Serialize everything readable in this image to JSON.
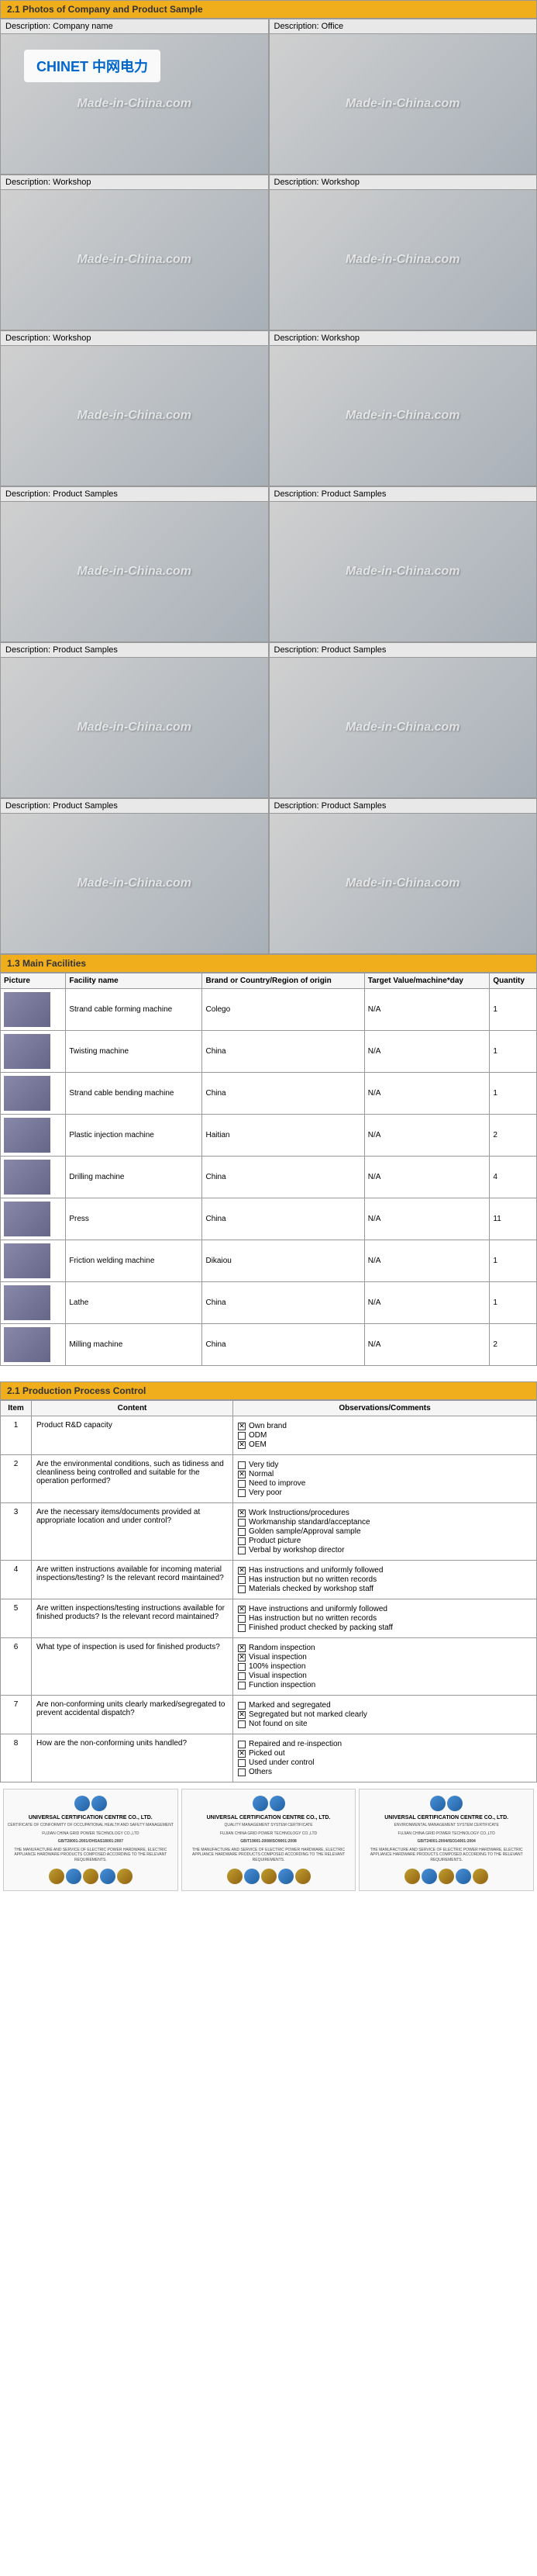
{
  "sections": {
    "photos_title": "2.1 Photos of Company and Product Sample",
    "facilities_title": "1.3 Main Facilities",
    "ppc_title": "2.1 Production Process Control"
  },
  "watermark": "Made-in-China.com",
  "company_logo": "CHINET 中网电力",
  "photo_labels": {
    "company": "Description: Company name",
    "office": "Description: Office",
    "workshop": "Description: Workshop",
    "samples": "Description: Product Samples"
  },
  "facility_headers": {
    "picture": "Picture",
    "name": "Facility name",
    "brand": "Brand or Country/Region of origin",
    "target": "Target Value/machine*day",
    "qty": "Quantity"
  },
  "facilities": [
    {
      "name": "Strand cable forming machine",
      "brand": "Colego",
      "target": "N/A",
      "qty": "1"
    },
    {
      "name": "Twisting machine",
      "brand": "China",
      "target": "N/A",
      "qty": "1"
    },
    {
      "name": "Strand cable bending machine",
      "brand": "China",
      "target": "N/A",
      "qty": "1"
    },
    {
      "name": "Plastic injection machine",
      "brand": "Haitian",
      "target": "N/A",
      "qty": "2"
    },
    {
      "name": "Drilling machine",
      "brand": "China",
      "target": "N/A",
      "qty": "4"
    },
    {
      "name": "Press",
      "brand": "China",
      "target": "N/A",
      "qty": "11"
    },
    {
      "name": "Friction welding machine",
      "brand": "Dikaiou",
      "target": "N/A",
      "qty": "1"
    },
    {
      "name": "Lathe",
      "brand": "China",
      "target": "N/A",
      "qty": "1"
    },
    {
      "name": "Milling machine",
      "brand": "China",
      "target": "N/A",
      "qty": "2"
    }
  ],
  "ppc_headers": {
    "item": "Item",
    "content": "Content",
    "obs": "Observations/Comments"
  },
  "ppc_rows": [
    {
      "n": "1",
      "content": "Product R&D capacity",
      "opts": [
        {
          "t": "Own brand",
          "c": true
        },
        {
          "t": "ODM",
          "c": false
        },
        {
          "t": "OEM",
          "c": true
        }
      ]
    },
    {
      "n": "2",
      "content": "Are the environmental conditions, such as tidiness and cleanliness being controlled and suitable for the operation performed?",
      "opts": [
        {
          "t": "Very tidy",
          "c": false
        },
        {
          "t": "Normal",
          "c": true
        },
        {
          "t": "Need to improve",
          "c": false
        },
        {
          "t": "Very poor",
          "c": false
        }
      ]
    },
    {
      "n": "3",
      "content": "Are the necessary items/documents provided at appropriate location and under control?",
      "opts": [
        {
          "t": "Work Instructions/procedures",
          "c": true
        },
        {
          "t": "Workmanship standard/acceptance",
          "c": false
        },
        {
          "t": "Golden sample/Approval sample",
          "c": false
        },
        {
          "t": "Product picture",
          "c": false
        },
        {
          "t": "Verbal by workshop director",
          "c": false
        }
      ]
    },
    {
      "n": "4",
      "content": "Are written instructions available for incoming material inspections/testing? Is the relevant record maintained?",
      "opts": [
        {
          "t": "Has instructions and uniformly followed",
          "c": true
        },
        {
          "t": "Has instruction but no written records",
          "c": false
        },
        {
          "t": "Materials checked by workshop staff",
          "c": false
        }
      ]
    },
    {
      "n": "5",
      "content": "Are written inspections/testing instructions available for finished products? Is the relevant record maintained?",
      "opts": [
        {
          "t": "Have instructions and uniformly followed",
          "c": true
        },
        {
          "t": "Has instruction but no written records",
          "c": false
        },
        {
          "t": "Finished product checked by packing staff",
          "c": false
        }
      ]
    },
    {
      "n": "6",
      "content": "What type of inspection is used for finished products?",
      "opts": [
        {
          "t": "Random inspection",
          "c": true
        },
        {
          "t": "Visual inspection",
          "c": true
        },
        {
          "t": "100% inspection",
          "c": false
        },
        {
          "t": "Visual inspection",
          "c": false
        },
        {
          "t": "Function inspection",
          "c": false
        }
      ]
    },
    {
      "n": "7",
      "content": "Are non-conforming units clearly marked/segregated to prevent accidental dispatch?",
      "opts": [
        {
          "t": "Marked and segregated",
          "c": false
        },
        {
          "t": "Segregated but not marked clearly",
          "c": true
        },
        {
          "t": "Not found on site",
          "c": false
        }
      ]
    },
    {
      "n": "8",
      "content": "How are the non-conforming units handled?",
      "opts": [
        {
          "t": "Repaired and re-inspection",
          "c": false
        },
        {
          "t": "Picked out",
          "c": true
        },
        {
          "t": "Used under control",
          "c": false
        },
        {
          "t": "Others",
          "c": false
        }
      ]
    }
  ],
  "certs": [
    {
      "title": "UNIVERSAL CERTIFICATION CENTRE CO., LTD.",
      "sub": "CERTIFICATE OF CONFORMITY OF OCCUPATIONAL HEALTH AND SAFETY MANAGEMENT",
      "company": "FUJIAN CHINA GRID POWER TECHNOLOGY CO.,LTD",
      "std": "GB/T28001-2001/OHSAS18001:2007"
    },
    {
      "title": "UNIVERSAL CERTIFICATION CENTRE CO., LTD.",
      "sub": "QUALITY MANAGEMENT SYSTEM CERTIFICATE",
      "company": "FUJIAN CHINA GRID POWER TECHNOLOGY CO.,LTD",
      "std": "GB/T19001-2008/ISO9001:2008"
    },
    {
      "title": "UNIVERSAL CERTIFICATION CENTRE CO., LTD.",
      "sub": "ENVIRONMENTAL MANAGEMENT SYSTEM CERTIFICATE",
      "company": "FUJIAN CHINA GRID POWER TECHNOLOGY CO.,LTD",
      "std": "GB/T24001-2004/ISO14001:2004"
    }
  ]
}
